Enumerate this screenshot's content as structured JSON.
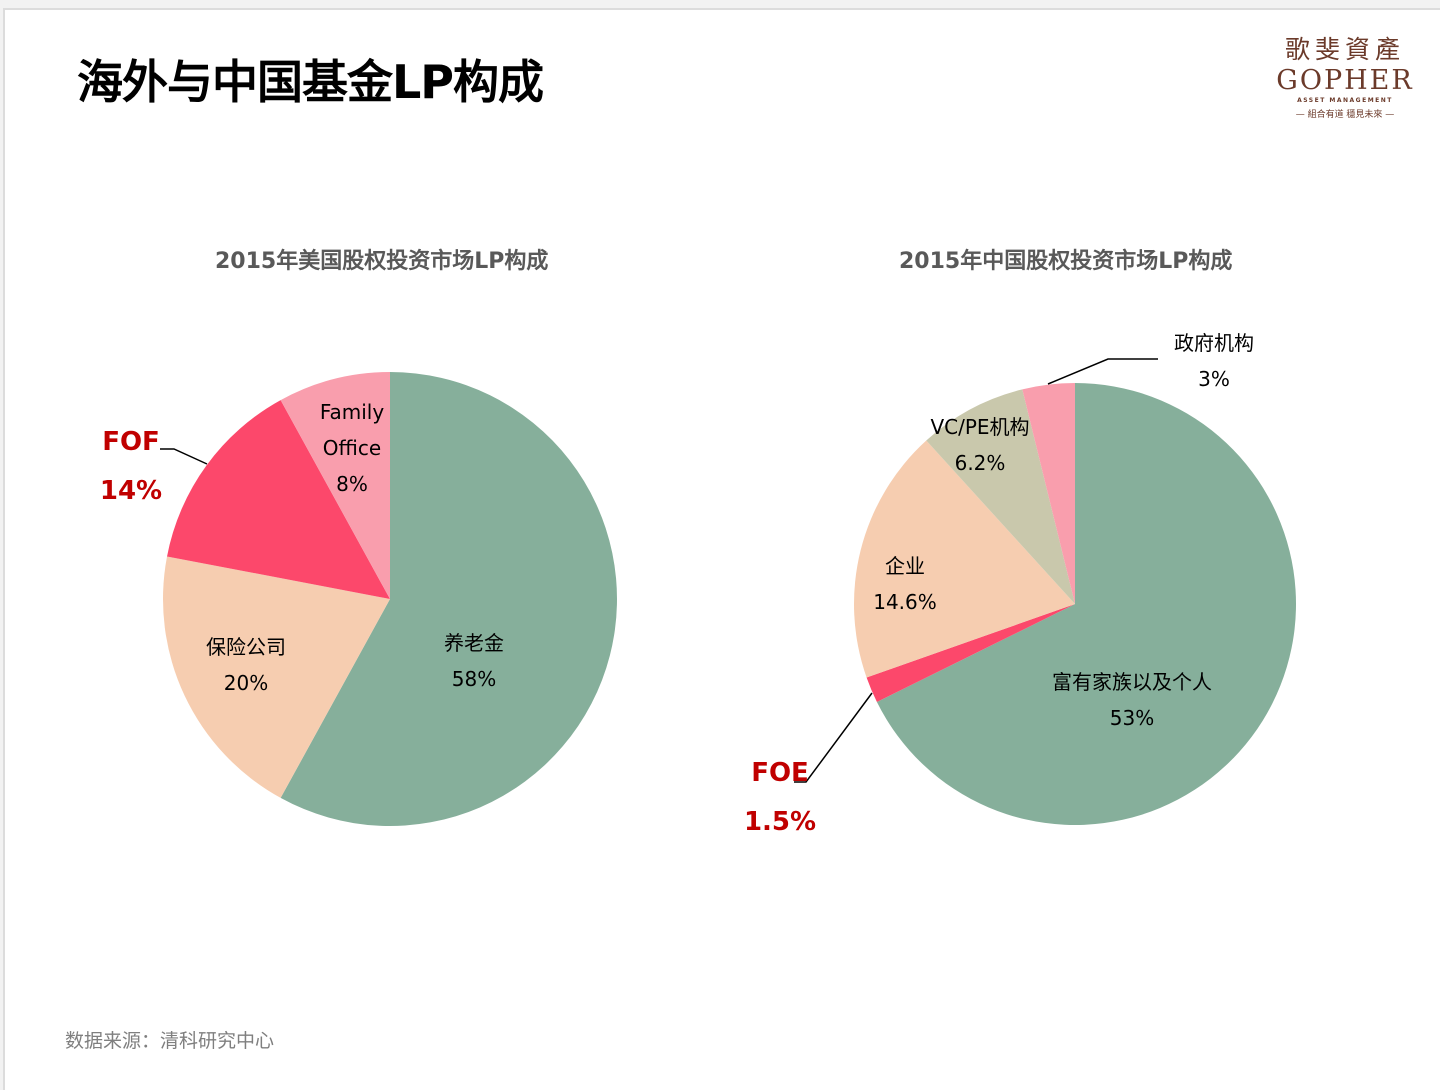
{
  "page": {
    "title": "海外与中国基金LP构成",
    "source": "数据来源：清科研究中心"
  },
  "logo": {
    "name_cn": "歌斐資產",
    "name_en": "GOPHER",
    "subtitle": "ASSET MANAGEMENT",
    "tagline": "— 組合有道 穩見未來 —"
  },
  "chart_data": [
    {
      "type": "pie",
      "title": "2015年美国股权投资市场LP构成",
      "start": "12 o'clock, clockwise",
      "slices": [
        {
          "label": "养老金",
          "value": 58,
          "display": "58%",
          "color": "#86af9b",
          "label_style": "inside"
        },
        {
          "label": "保险公司",
          "value": 20,
          "display": "20%",
          "color": "#f6cdb0",
          "label_style": "inside"
        },
        {
          "label": "FOF",
          "value": 14,
          "display": "14%",
          "color": "#fc486b",
          "label_style": "callout-red"
        },
        {
          "label": "Family Office",
          "value": 8,
          "display": "8%",
          "color": "#f99ead",
          "label_style": "inside"
        }
      ]
    },
    {
      "type": "pie",
      "title": "2015年中国股权投资市场LP构成",
      "start": "12 o'clock, clockwise",
      "slices": [
        {
          "label": "富有家族以及个人",
          "value": 53,
          "display": "53%",
          "color": "#86af9b",
          "label_style": "inside"
        },
        {
          "label": "FOE",
          "value": 1.5,
          "display": "1.5%",
          "color": "#fc486b",
          "label_style": "callout-red"
        },
        {
          "label": "企业",
          "value": 14.6,
          "display": "14.6%",
          "color": "#f6cdb0",
          "label_style": "inside"
        },
        {
          "label": "VC/PE机构",
          "value": 6.2,
          "display": "6.2%",
          "color": "#c9c8ac",
          "label_style": "inside"
        },
        {
          "label": "政府机构",
          "value": 3,
          "display": "3%",
          "color": "#f99ead",
          "label_style": "callout"
        }
      ]
    }
  ]
}
